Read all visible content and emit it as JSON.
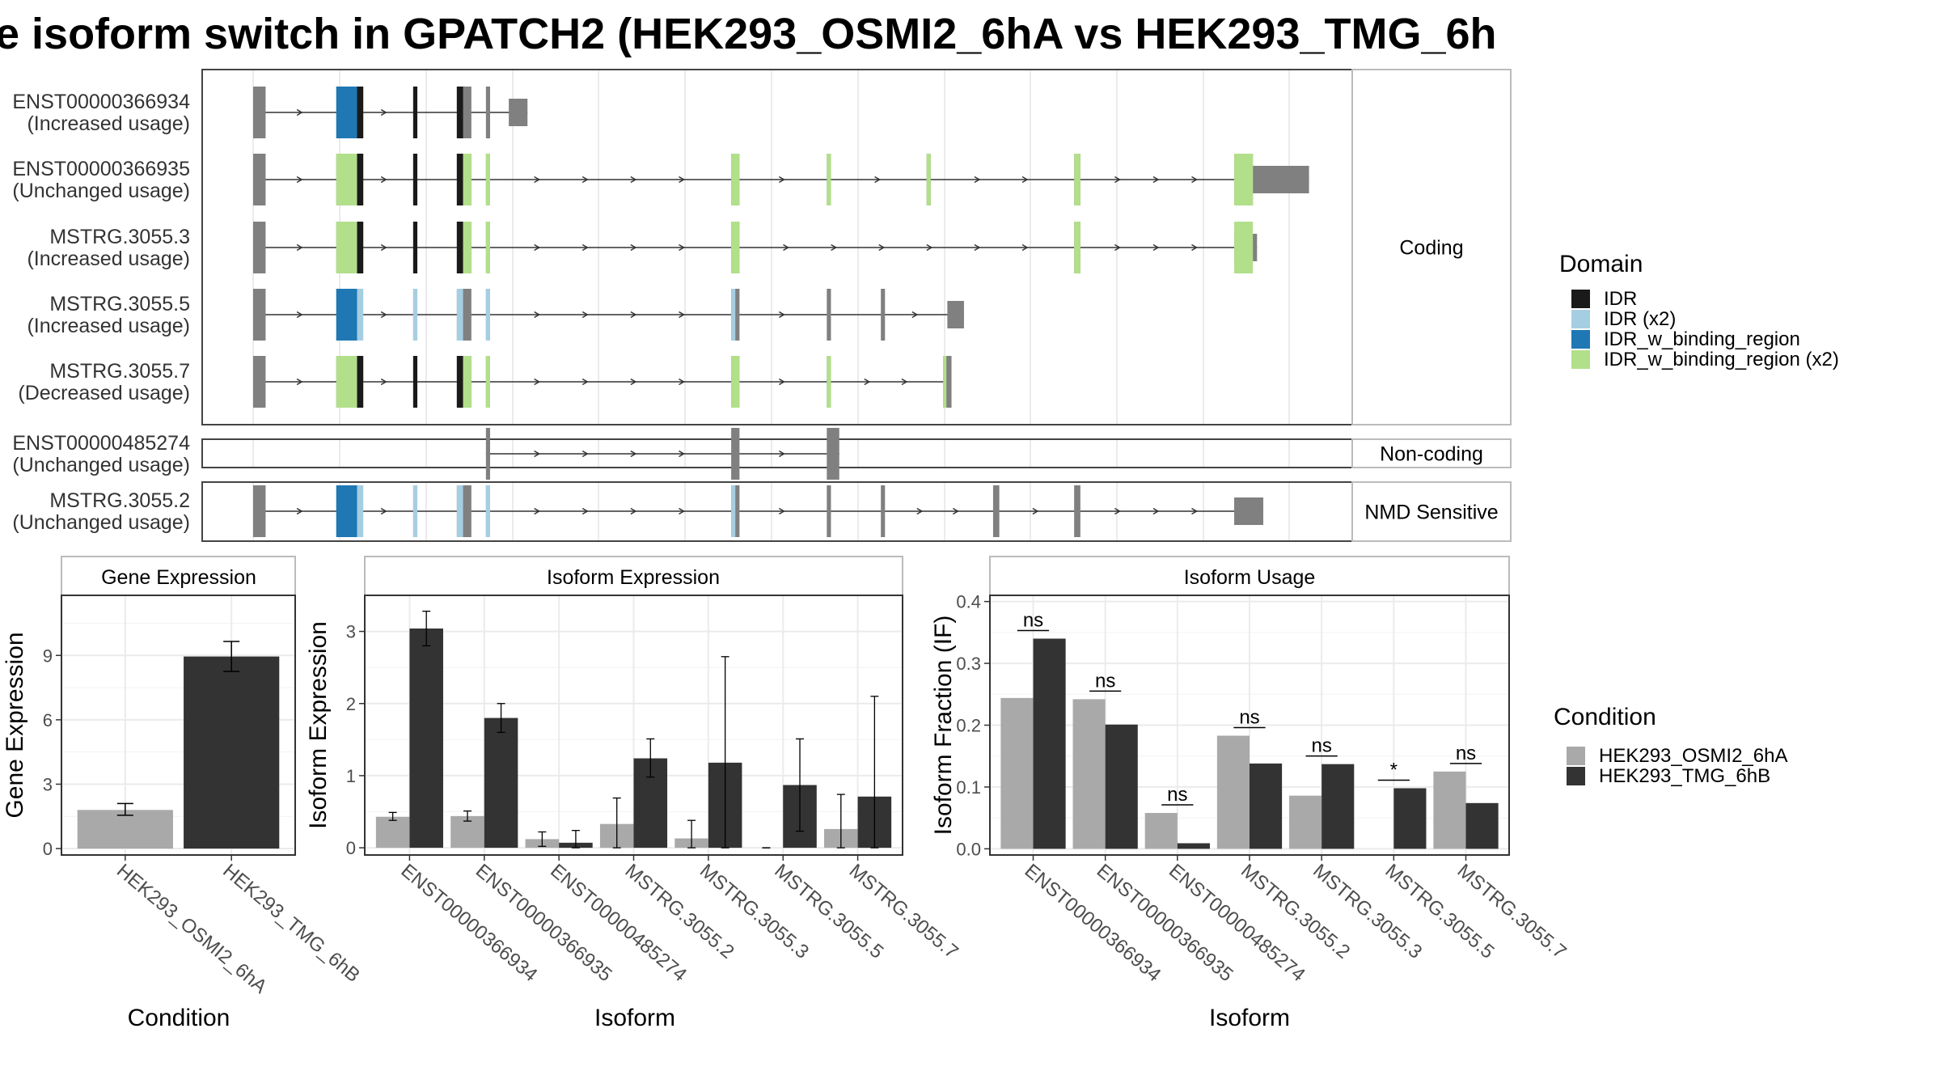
{
  "title": "e isoform switch in GPATCH2 (HEK293_OSMI2_6hA vs HEK293_TMG_6h",
  "colors": {
    "IDR": "#1a1a1a",
    "IDR (x2)": "#a6cee3",
    "IDR_w_binding_region": "#1f78b4",
    "IDR_w_binding_region (x2)": "#b2df8a",
    "exon": "#808080",
    "cond_a": "#a9a9a9",
    "cond_b": "#333333"
  },
  "legend": {
    "domain_title": "Domain",
    "domain_items": [
      "IDR",
      "IDR (x2)",
      "IDR_w_binding_region",
      "IDR_w_binding_region (x2)"
    ],
    "condition_title": "Condition",
    "condition_items": [
      "HEK293_OSMI2_6hA",
      "HEK293_TMG_6hB"
    ]
  },
  "structure": {
    "groups": [
      {
        "label": "Coding",
        "isoforms": [
          {
            "id": "ENST00000366934",
            "usage": "(Increased usage)",
            "exons": [
              [
                0,
                0.6
              ],
              [
                4.0,
                5.0
              ],
              [
                7.7,
                7.9
              ],
              [
                9.8,
                10.5
              ],
              [
                11.2,
                11.4
              ],
              [
                12.3,
                13.2
              ]
            ],
            "domains": [
              [
                4.0,
                5.0,
                "IDR_w_binding_region"
              ],
              [
                5.0,
                5.3,
                "IDR"
              ],
              [
                7.7,
                7.9,
                "IDR"
              ],
              [
                9.8,
                10.1,
                "IDR"
              ]
            ]
          },
          {
            "id": "ENST00000366935",
            "usage": "(Unchanged usage)",
            "exons": [
              [
                0,
                0.6
              ],
              [
                4.0,
                5.0
              ],
              [
                7.7,
                7.9
              ],
              [
                9.8,
                10.5
              ],
              [
                11.2,
                11.4
              ],
              [
                23.0,
                23.4
              ],
              [
                27.6,
                27.8
              ],
              [
                32.4,
                32.6
              ],
              [
                39.5,
                39.8
              ],
              [
                47.2,
                48.1
              ],
              [
                48.1,
                50.8
              ]
            ],
            "domains": [
              [
                4.0,
                5.0,
                "IDR_w_binding_region (x2)"
              ],
              [
                5.0,
                5.3,
                "IDR"
              ],
              [
                7.7,
                7.9,
                "IDR"
              ],
              [
                9.8,
                10.1,
                "IDR"
              ],
              [
                10.1,
                10.5,
                "IDR_w_binding_region (x2)"
              ],
              [
                11.2,
                11.4,
                "IDR_w_binding_region (x2)"
              ],
              [
                23.0,
                23.4,
                "IDR_w_binding_region (x2)"
              ],
              [
                27.6,
                27.8,
                "IDR_w_binding_region (x2)"
              ],
              [
                32.4,
                32.6,
                "IDR_w_binding_region (x2)"
              ],
              [
                39.5,
                39.8,
                "IDR_w_binding_region (x2)"
              ],
              [
                47.2,
                48.1,
                "IDR_w_binding_region (x2)"
              ]
            ]
          },
          {
            "id": "MSTRG.3055.3",
            "usage": "(Increased usage)",
            "exons": [
              [
                0,
                0.6
              ],
              [
                4.0,
                5.0
              ],
              [
                7.7,
                7.9
              ],
              [
                9.8,
                10.5
              ],
              [
                11.2,
                11.4
              ],
              [
                23.0,
                23.4
              ],
              [
                39.5,
                39.8
              ],
              [
                47.2,
                48.3
              ]
            ],
            "domains": [
              [
                4.0,
                5.0,
                "IDR_w_binding_region (x2)"
              ],
              [
                5.0,
                5.3,
                "IDR"
              ],
              [
                7.7,
                7.9,
                "IDR"
              ],
              [
                9.8,
                10.1,
                "IDR"
              ],
              [
                10.1,
                10.5,
                "IDR_w_binding_region (x2)"
              ],
              [
                11.2,
                11.4,
                "IDR_w_binding_region (x2)"
              ],
              [
                23.0,
                23.4,
                "IDR_w_binding_region (x2)"
              ],
              [
                39.5,
                39.8,
                "IDR_w_binding_region (x2)"
              ],
              [
                47.2,
                48.1,
                "IDR_w_binding_region (x2)"
              ]
            ]
          },
          {
            "id": "MSTRG.3055.5",
            "usage": "(Increased usage)",
            "exons": [
              [
                0,
                0.6
              ],
              [
                4.0,
                5.0
              ],
              [
                7.7,
                7.9
              ],
              [
                9.8,
                10.5
              ],
              [
                11.2,
                11.4
              ],
              [
                23.0,
                23.4
              ],
              [
                27.6,
                27.8
              ],
              [
                30.2,
                30.4
              ],
              [
                33.4,
                34.2
              ]
            ],
            "domains": [
              [
                4.0,
                5.0,
                "IDR_w_binding_region"
              ],
              [
                5.0,
                5.3,
                "IDR (x2)"
              ],
              [
                7.7,
                7.9,
                "IDR (x2)"
              ],
              [
                9.8,
                10.1,
                "IDR (x2)"
              ],
              [
                11.2,
                11.4,
                "IDR (x2)"
              ],
              [
                23.0,
                23.2,
                "IDR (x2)"
              ]
            ]
          },
          {
            "id": "MSTRG.3055.7",
            "usage": "(Decreased usage)",
            "exons": [
              [
                0,
                0.6
              ],
              [
                4.0,
                5.0
              ],
              [
                7.7,
                7.9
              ],
              [
                9.8,
                10.5
              ],
              [
                11.2,
                11.4
              ],
              [
                23.0,
                23.4
              ],
              [
                27.6,
                27.8
              ],
              [
                33.2,
                33.6
              ]
            ],
            "domains": [
              [
                4.0,
                5.0,
                "IDR_w_binding_region (x2)"
              ],
              [
                5.0,
                5.3,
                "IDR"
              ],
              [
                7.7,
                7.9,
                "IDR"
              ],
              [
                9.8,
                10.1,
                "IDR"
              ],
              [
                10.1,
                10.5,
                "IDR_w_binding_region (x2)"
              ],
              [
                11.2,
                11.4,
                "IDR_w_binding_region (x2)"
              ],
              [
                23.0,
                23.4,
                "IDR_w_binding_region (x2)"
              ],
              [
                27.6,
                27.8,
                "IDR_w_binding_region (x2)"
              ],
              [
                33.2,
                33.3,
                "IDR_w_binding_region (x2)"
              ]
            ]
          }
        ]
      },
      {
        "label": "Non-coding",
        "isoforms": [
          {
            "id": "ENST00000485274",
            "usage": "(Unchanged usage)",
            "exons": [
              [
                11.2,
                11.4
              ],
              [
                23.0,
                23.4
              ],
              [
                27.6,
                28.2
              ]
            ],
            "domains": []
          }
        ]
      },
      {
        "label": "NMD Sensitive",
        "isoforms": [
          {
            "id": "MSTRG.3055.2",
            "usage": "(Unchanged usage)",
            "exons": [
              [
                0,
                0.6
              ],
              [
                4.0,
                5.0
              ],
              [
                7.7,
                7.9
              ],
              [
                9.8,
                10.5
              ],
              [
                11.2,
                11.4
              ],
              [
                23.0,
                23.4
              ],
              [
                27.6,
                27.8
              ],
              [
                30.2,
                30.4
              ],
              [
                35.6,
                35.9
              ],
              [
                39.5,
                39.8
              ],
              [
                47.2,
                48.6
              ]
            ],
            "domains": [
              [
                4.0,
                5.0,
                "IDR_w_binding_region"
              ],
              [
                5.0,
                5.3,
                "IDR (x2)"
              ],
              [
                7.7,
                7.9,
                "IDR (x2)"
              ],
              [
                9.8,
                10.1,
                "IDR (x2)"
              ],
              [
                11.2,
                11.4,
                "IDR (x2)"
              ],
              [
                23.0,
                23.2,
                "IDR (x2)"
              ]
            ]
          }
        ]
      }
    ]
  },
  "chart_data": [
    {
      "type": "bar",
      "title": "Gene Expression",
      "xlabel": "Condition",
      "ylabel": "Gene Expression",
      "categories": [
        "HEK293_OSMI2_6hA",
        "HEK293_TMG_6hB"
      ],
      "values": [
        1.8,
        8.95
      ],
      "errors": [
        [
          1.55,
          2.1
        ],
        [
          8.25,
          9.65
        ]
      ],
      "ylim": [
        -0.3,
        11.8
      ],
      "yticks": [
        0,
        3,
        6,
        9
      ],
      "grid": true
    },
    {
      "type": "bar",
      "title": "Isoform Expression",
      "xlabel": "Isoform",
      "ylabel": "Isoform Expression",
      "categories": [
        "ENST00000366934",
        "ENST00000366935",
        "ENST00000485274",
        "MSTRG.3055.2",
        "MSTRG.3055.3",
        "MSTRG.3055.5",
        "MSTRG.3055.7"
      ],
      "series": [
        {
          "name": "HEK293_OSMI2_6hA",
          "values": [
            0.43,
            0.44,
            0.12,
            0.33,
            0.13,
            0.0,
            0.26
          ],
          "errors": [
            [
              0.38,
              0.49
            ],
            [
              0.37,
              0.51
            ],
            [
              0.02,
              0.22
            ],
            [
              0.0,
              0.69
            ],
            [
              0.0,
              0.38
            ],
            [
              0.0,
              0.0
            ],
            [
              0.0,
              0.74
            ]
          ]
        },
        {
          "name": "HEK293_TMG_6hB",
          "values": [
            3.04,
            1.8,
            0.07,
            1.24,
            1.18,
            0.87,
            0.71
          ],
          "errors": [
            [
              2.8,
              3.28
            ],
            [
              1.6,
              2.0
            ],
            [
              0.0,
              0.24
            ],
            [
              0.98,
              1.51
            ],
            [
              0.0,
              2.65
            ],
            [
              0.23,
              1.51
            ],
            [
              0.0,
              2.1
            ]
          ]
        }
      ],
      "ylim": [
        -0.1,
        3.5
      ],
      "yticks": [
        0,
        1,
        2,
        3
      ],
      "grid": true
    },
    {
      "type": "bar",
      "title": "Isoform Usage",
      "xlabel": "Isoform",
      "ylabel": "Isoform Fraction (IF)",
      "categories": [
        "ENST00000366934",
        "ENST00000366935",
        "ENST00000485274",
        "MSTRG.3055.2",
        "MSTRG.3055.3",
        "MSTRG.3055.5",
        "MSTRG.3055.7"
      ],
      "series": [
        {
          "name": "HEK293_OSMI2_6hA",
          "values": [
            0.244,
            0.242,
            0.058,
            0.183,
            0.086,
            0.0,
            0.125
          ]
        },
        {
          "name": "HEK293_TMG_6hB",
          "values": [
            0.34,
            0.201,
            0.009,
            0.138,
            0.137,
            0.098,
            0.074
          ]
        }
      ],
      "significance": [
        "ns",
        "ns",
        "ns",
        "ns",
        "ns",
        "*",
        "ns"
      ],
      "ylim": [
        -0.01,
        0.41
      ],
      "yticks": [
        0.0,
        0.1,
        0.2,
        0.3,
        0.4
      ],
      "grid": true
    }
  ]
}
